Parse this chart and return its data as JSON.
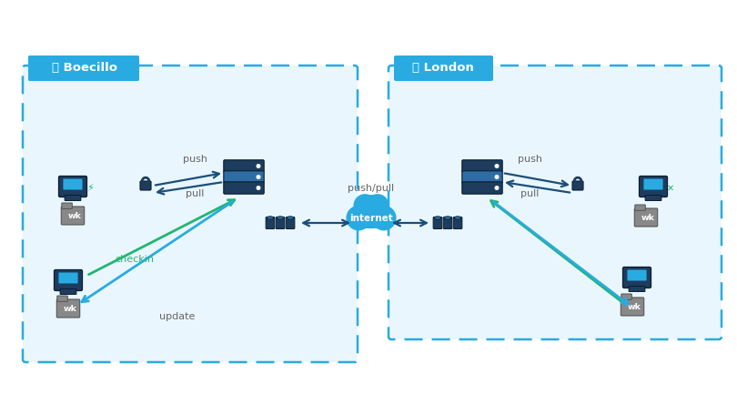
{
  "bg_color": "#ffffff",
  "box_border_color": "#29abe2",
  "box_fill": "#eaf6fd",
  "label_bg": "#29abe2",
  "arrow_dark": "#1a4f7a",
  "arrow_green": "#22b573",
  "arrow_cyan": "#29abe2",
  "text_gray": "#666666",
  "server_dark": "#1d3c5e",
  "server_mid": "#2e6da4",
  "server_light": "#29abe2",
  "computer_body": "#1d3c5e",
  "computer_screen": "#29abe2",
  "cloud_color": "#29abe2",
  "lock_color": "#1d3c5e",
  "cyl_color": "#1d3c5e",
  "folder_color": "#888888",
  "boecillo_label": "Boecillo",
  "london_label": "London",
  "internet_label": "internet",
  "push_label": "push",
  "pull_label": "pull",
  "pushpull_label": "push/pull",
  "checkin_label": "checkin",
  "update_label": "update",
  "wk_label": "wk"
}
